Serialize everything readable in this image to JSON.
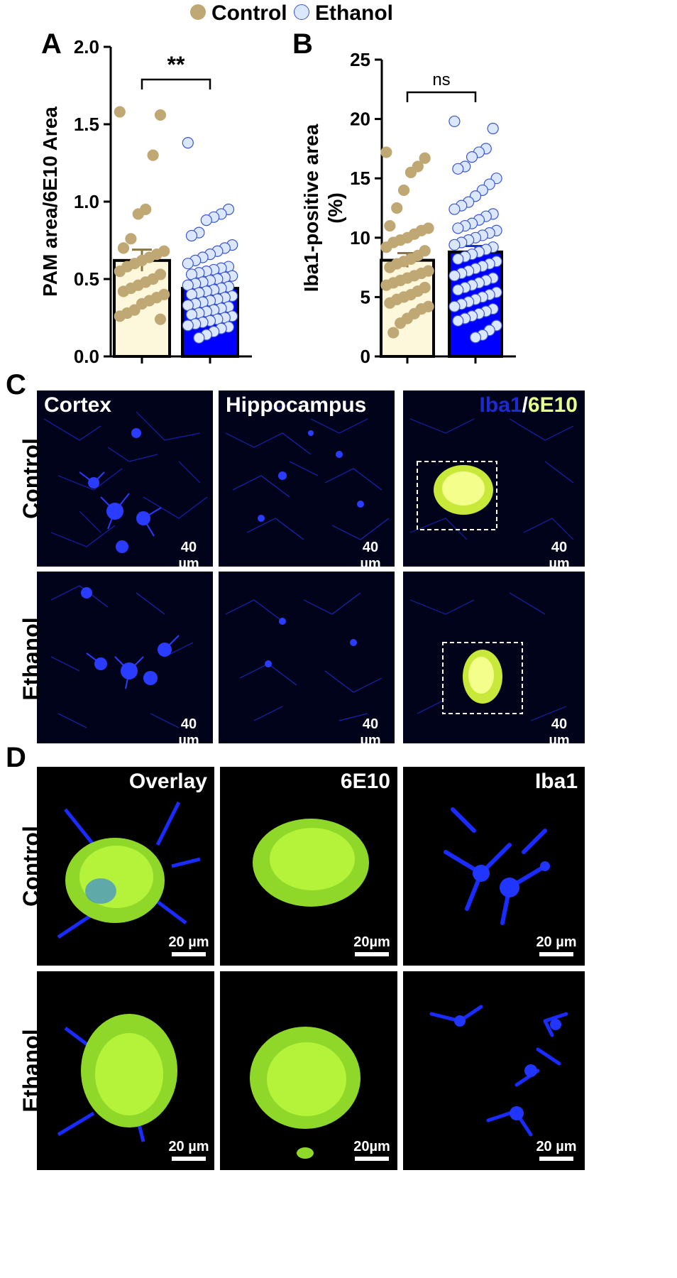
{
  "legend": {
    "control": "Control",
    "ethanol": "Ethanol",
    "control_color": "#bfa873",
    "ethanol_color": "#dbe6ff"
  },
  "panel_letters": {
    "a": "A",
    "b": "B",
    "c": "C",
    "d": "D"
  },
  "chart_data": [
    {
      "type": "bar",
      "categories": [
        "Control",
        "Ethanol"
      ],
      "values": [
        0.62,
        0.44
      ],
      "errors": [
        0.07,
        0.03
      ],
      "ylabel": "PAM area/6E10 Area",
      "ylim": [
        0,
        2.0
      ],
      "yticks": [
        "0.0",
        "0.5",
        "1.0",
        "1.5",
        "2.0"
      ],
      "significance": "**",
      "bar_colors": [
        "#fdf7dc",
        "#0000ff"
      ],
      "points": {
        "Control": [
          1.58,
          1.56,
          1.3,
          0.95,
          0.92,
          0.76,
          0.7,
          0.68,
          0.66,
          0.64,
          0.62,
          0.6,
          0.58,
          0.55,
          0.53,
          0.5,
          0.48,
          0.46,
          0.44,
          0.42,
          0.4,
          0.38,
          0.36,
          0.34,
          0.3,
          0.28,
          0.26,
          0.24
        ],
        "Ethanol": [
          1.38,
          0.95,
          0.92,
          0.9,
          0.88,
          0.8,
          0.78,
          0.72,
          0.7,
          0.68,
          0.66,
          0.64,
          0.62,
          0.6,
          0.58,
          0.57,
          0.56,
          0.55,
          0.54,
          0.53,
          0.52,
          0.51,
          0.5,
          0.49,
          0.48,
          0.47,
          0.46,
          0.45,
          0.44,
          0.43,
          0.42,
          0.41,
          0.4,
          0.39,
          0.38,
          0.37,
          0.36,
          0.35,
          0.34,
          0.33,
          0.32,
          0.31,
          0.3,
          0.29,
          0.28,
          0.27,
          0.26,
          0.25,
          0.24,
          0.23,
          0.22,
          0.21,
          0.2,
          0.19,
          0.18,
          0.16,
          0.14,
          0.12
        ]
      }
    },
    {
      "type": "bar",
      "categories": [
        "Control",
        "Ethanol"
      ],
      "values": [
        8.1,
        8.8
      ],
      "errors": [
        0.6,
        0.5
      ],
      "ylabel": "Iba1-positive area\n(%)",
      "ylim": [
        0,
        25
      ],
      "yticks": [
        "0",
        "5",
        "10",
        "15",
        "20",
        "25"
      ],
      "significance": "ns",
      "bar_colors": [
        "#fdf7dc",
        "#0000ff"
      ],
      "points": {
        "Control": [
          17.2,
          16.7,
          16,
          15.5,
          14,
          12.5,
          11,
          10.8,
          10.6,
          10.3,
          10,
          9.8,
          9.6,
          9.2,
          8.9,
          8.5,
          8.2,
          8,
          7.8,
          7.5,
          7.2,
          7,
          6.8,
          6.6,
          6.4,
          6.2,
          6,
          5.8,
          5.5,
          5.2,
          5,
          4.8,
          4.5,
          4.2,
          4,
          3.6,
          3.2,
          2.8,
          2
        ],
        "Ethanol": [
          19.8,
          19.2,
          17.5,
          17.2,
          16.8,
          16,
          15.8,
          15,
          14.5,
          14,
          13.5,
          13,
          12.7,
          12.4,
          12,
          11.8,
          11.5,
          11.2,
          11,
          10.8,
          10.6,
          10.4,
          10.2,
          10,
          9.8,
          9.6,
          9.4,
          9.2,
          9,
          8.8,
          8.6,
          8.4,
          8.2,
          8,
          7.8,
          7.6,
          7.4,
          7.2,
          7,
          6.8,
          6.6,
          6.4,
          6.2,
          6,
          5.8,
          5.6,
          5.4,
          5.2,
          5,
          4.8,
          4.6,
          4.4,
          4.2,
          4,
          3.8,
          3.6,
          3.4,
          3.2,
          3,
          2.6,
          2.2,
          1.8,
          1.6
        ]
      }
    }
  ],
  "panel_c": {
    "column_labels": [
      "Cortex",
      "Hippocampus"
    ],
    "stain_label_iba1": "Iba1",
    "stain_label_sep": "/",
    "stain_label_6e10": "6E10",
    "row_labels": [
      "Control",
      "Ethanol"
    ],
    "scale": "40 µm"
  },
  "panel_d": {
    "column_labels": [
      "Overlay",
      "6E10",
      "Iba1"
    ],
    "row_labels": [
      "Control",
      "Ethanol"
    ],
    "scale_a": "20 µm",
    "scale_b": "20µm"
  }
}
